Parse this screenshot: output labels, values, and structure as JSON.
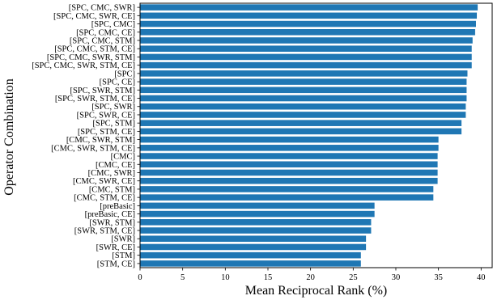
{
  "chart_data": {
    "type": "bar",
    "orientation": "horizontal",
    "xlabel": "Mean Reciprocal Rank (%)",
    "ylabel": "Operator Combination",
    "xlim": [
      0,
      41.3
    ],
    "xticks": [
      0,
      5,
      10,
      15,
      20,
      25,
      30,
      35,
      40
    ],
    "bar_color": "#1f77b4",
    "grid": false,
    "categories": [
      "[SPC, CMC, SWR]",
      "[SPC, CMC, SWR, CE]",
      "[SPC, CMC]",
      "[SPC, CMC, CE]",
      "[SPC, CMC, STM]",
      "[SPC, CMC, STM, CE]",
      "[SPC, CMC, SWR, STM]",
      "[SPC, CMC, SWR, STM, CE]",
      "[SPC]",
      "[SPC, CE]",
      "[SPC, SWR, STM]",
      "[SPC, SWR, STM, CE]",
      "[SPC, SWR]",
      "[SPC, SWR, CE]",
      "[SPC, STM]",
      "[SPC, STM, CE]",
      "[CMC, SWR, STM]",
      "[CMC, SWR, STM, CE]",
      "[CMC]",
      "[CMC, CE]",
      "[CMC, SWR]",
      "[CMC, SWR, CE]",
      "[CMC, STM]",
      "[CMC, STM, CE]",
      "[preBasic]",
      "[preBasic, CE]",
      "[SWR, STM]",
      "[SWR, STM, CE]",
      "[SWR]",
      "[SWR, CE]",
      "[STM]",
      "[STM, CE]"
    ],
    "values": [
      39.6,
      39.5,
      39.4,
      39.3,
      39.0,
      38.9,
      38.9,
      38.9,
      38.4,
      38.3,
      38.3,
      38.3,
      38.2,
      38.2,
      37.7,
      37.7,
      35.0,
      35.0,
      34.9,
      34.9,
      34.9,
      34.9,
      34.4,
      34.4,
      27.5,
      27.5,
      27.1,
      27.1,
      26.5,
      26.5,
      25.9,
      25.9
    ]
  }
}
